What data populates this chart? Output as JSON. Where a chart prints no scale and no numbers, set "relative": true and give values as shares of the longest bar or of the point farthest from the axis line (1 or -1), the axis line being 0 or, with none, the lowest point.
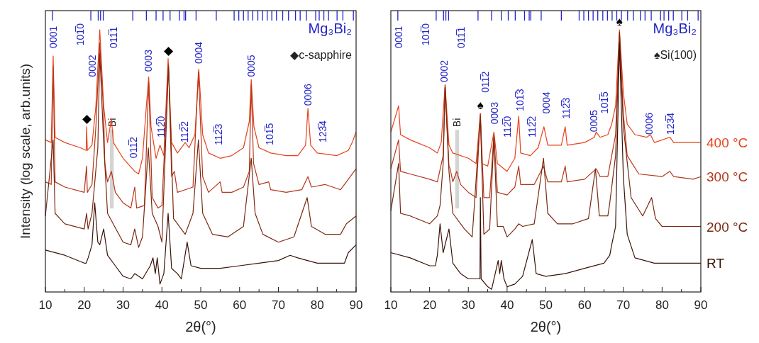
{
  "chart_data": [
    {
      "type": "line",
      "relative": true,
      "xlabel": "2θ(°)",
      "ylabel": "Intensity (log scale, arb.units)",
      "xlim": [
        10,
        90
      ],
      "tick_labels": "x",
      "xticks": [
        10,
        {
          "value": 15,
          "label": null
        },
        20,
        {
          "value": 25,
          "label": null
        },
        30,
        {
          "value": 35,
          "label": null
        },
        40,
        {
          "value": 45,
          "label": null
        },
        50,
        {
          "value": 55,
          "label": null
        },
        60,
        {
          "value": 65,
          "label": null
        },
        70,
        {
          "value": 75,
          "label": null
        },
        80,
        {
          "value": 85,
          "label": null
        },
        90
      ],
      "series": [
        {
          "color": "#e8421a",
          "x": [
            10,
            11.5,
            12,
            12.5,
            15,
            19,
            20.5,
            20.6,
            20.8,
            22,
            23,
            24,
            25,
            26,
            27,
            27.5,
            30,
            33,
            34,
            35,
            36,
            36.6,
            37.2,
            38.5,
            39.5,
            40.5,
            41.6,
            42.5,
            44,
            46,
            47,
            48.5,
            49.5,
            50.5,
            52,
            55,
            58,
            61,
            62.5,
            63,
            63.7,
            65,
            68,
            72,
            75,
            77,
            77.6,
            78.3,
            80,
            85,
            88,
            89,
            90
          ],
          "values": [
            0.58,
            0.57,
            0.9,
            0.59,
            0.57,
            0.55,
            0.54,
            0.63,
            0.54,
            0.56,
            0.71,
            1.0,
            0.71,
            0.57,
            0.66,
            0.57,
            0.51,
            0.46,
            0.45,
            0.51,
            0.71,
            0.82,
            0.63,
            0.51,
            0.56,
            0.52,
            0.89,
            0.57,
            0.53,
            0.57,
            0.55,
            0.6,
            0.85,
            0.6,
            0.53,
            0.51,
            0.52,
            0.55,
            0.65,
            0.81,
            0.63,
            0.55,
            0.53,
            0.52,
            0.52,
            0.56,
            0.7,
            0.56,
            0.53,
            0.52,
            0.54,
            0.57,
            0.61
          ]
        },
        {
          "color": "#b5361a",
          "x": [
            10,
            11.5,
            12,
            12.5,
            15,
            20,
            20.6,
            20.8,
            22,
            23,
            24,
            25,
            25.3,
            26,
            27,
            28,
            30,
            32,
            33,
            33.5,
            35.5,
            36.6,
            37.5,
            39,
            40,
            41.7,
            42.5,
            43.2,
            44,
            46,
            48,
            49.4,
            50.5,
            52,
            55,
            55.5,
            58,
            61,
            62.5,
            63,
            63.6,
            65,
            67.5,
            68,
            72,
            76,
            77.6,
            78.5,
            82,
            86,
            87.5,
            90
          ],
          "values": [
            0.42,
            0.41,
            0.86,
            0.42,
            0.4,
            0.38,
            0.48,
            0.38,
            0.41,
            0.63,
            0.95,
            0.68,
            0.49,
            0.42,
            0.46,
            0.38,
            0.34,
            0.32,
            0.4,
            0.32,
            0.33,
            0.8,
            0.36,
            0.32,
            0.33,
            0.87,
            0.44,
            0.46,
            0.38,
            0.39,
            0.4,
            0.84,
            0.44,
            0.38,
            0.42,
            0.38,
            0.38,
            0.4,
            0.46,
            0.79,
            0.49,
            0.41,
            0.42,
            0.39,
            0.38,
            0.39,
            0.44,
            0.4,
            0.41,
            0.39,
            0.42,
            0.47
          ]
        },
        {
          "color": "#7a2810",
          "x": [
            10,
            12,
            12.5,
            15,
            20,
            20.6,
            21,
            22,
            23.5,
            24,
            25,
            26,
            30,
            32,
            33,
            34,
            35,
            36.5,
            37.5,
            39,
            40,
            41.7,
            43,
            46,
            48,
            49.4,
            50.5,
            53,
            57,
            61,
            63,
            64,
            66,
            70,
            74,
            77.4,
            78.5,
            82,
            86,
            87.5,
            90
          ],
          "values": [
            0.29,
            0.58,
            0.3,
            0.26,
            0.24,
            0.3,
            0.24,
            0.3,
            0.55,
            0.91,
            0.57,
            0.3,
            0.19,
            0.18,
            0.24,
            0.17,
            0.21,
            0.55,
            0.3,
            0.25,
            0.19,
            0.86,
            0.28,
            0.22,
            0.3,
            0.58,
            0.3,
            0.22,
            0.21,
            0.25,
            0.51,
            0.3,
            0.22,
            0.19,
            0.21,
            0.36,
            0.25,
            0.22,
            0.22,
            0.26,
            0.29
          ]
        },
        {
          "color": "#3a1208",
          "x": [
            10,
            15,
            20,
            20.5,
            21,
            22,
            22.7,
            23.5,
            24,
            25,
            26,
            28,
            30,
            32,
            33,
            35,
            37,
            37.7,
            38.3,
            38.8,
            39.5,
            40.5,
            41.6,
            42.5,
            44,
            45,
            46.5,
            47.5,
            50,
            55,
            60,
            65,
            70,
            73,
            75,
            80,
            85,
            87,
            88,
            90
          ],
          "values": [
            0.16,
            0.14,
            0.11,
            0.11,
            0.13,
            0.18,
            0.34,
            0.19,
            0.18,
            0.24,
            0.14,
            0.1,
            0.06,
            0.05,
            0.07,
            0.05,
            0.1,
            0.13,
            0.07,
            0.13,
            0.03,
            0.07,
            0.3,
            0.09,
            0.07,
            0.05,
            0.19,
            0.1,
            0.09,
            0.09,
            0.1,
            0.11,
            0.12,
            0.14,
            0.13,
            0.11,
            0.11,
            0.11,
            0.15,
            0.18
          ]
        }
      ],
      "ref_lines": [
        {
          "axis": "x",
          "value": 11.8,
          "color": "#2424c8"
        },
        {
          "axis": "x",
          "value": 21.7,
          "color": "#2424c8"
        },
        {
          "axis": "x",
          "value": 23.6,
          "color": "#2424c8"
        },
        {
          "axis": "x",
          "value": 24.2,
          "color": "#2424c8"
        },
        {
          "axis": "x",
          "value": 24.9,
          "color": "#2424c8"
        },
        {
          "axis": "x",
          "value": 32.5,
          "color": "#2424c8"
        },
        {
          "axis": "x",
          "value": 36.0,
          "color": "#2424c8"
        },
        {
          "axis": "x",
          "value": 38.5,
          "color": "#2424c8"
        },
        {
          "axis": "x",
          "value": 40.3,
          "color": "#2424c8"
        },
        {
          "axis": "x",
          "value": 42.1,
          "color": "#2424c8"
        },
        {
          "axis": "x",
          "value": 44.5,
          "color": "#2424c8"
        },
        {
          "axis": "x",
          "value": 45.7,
          "color": "#2424c8"
        },
        {
          "axis": "x",
          "value": 46.1,
          "color": "#2424c8"
        },
        {
          "axis": "x",
          "value": 48.8,
          "color": "#2424c8"
        },
        {
          "axis": "x",
          "value": 54.0,
          "color": "#2424c8"
        },
        {
          "axis": "x",
          "value": 58.6,
          "color": "#2424c8"
        },
        {
          "axis": "x",
          "value": 59.8,
          "color": "#2424c8"
        },
        {
          "axis": "x",
          "value": 61.0,
          "color": "#2424c8"
        },
        {
          "axis": "x",
          "value": 62.2,
          "color": "#2424c8"
        },
        {
          "axis": "x",
          "value": 63.4,
          "color": "#2424c8"
        },
        {
          "axis": "x",
          "value": 64.7,
          "color": "#2424c8"
        },
        {
          "axis": "x",
          "value": 65.9,
          "color": "#2424c8"
        },
        {
          "axis": "x",
          "value": 67.1,
          "color": "#2424c8"
        },
        {
          "axis": "x",
          "value": 68.3,
          "color": "#2424c8"
        },
        {
          "axis": "x",
          "value": 69.5,
          "color": "#2424c8"
        },
        {
          "axis": "x",
          "value": 71.1,
          "color": "#2424c8"
        },
        {
          "axis": "x",
          "value": 72.6,
          "color": "#2424c8"
        },
        {
          "axis": "x",
          "value": 74.4,
          "color": "#2424c8"
        },
        {
          "axis": "x",
          "value": 75.6,
          "color": "#2424c8"
        },
        {
          "axis": "x",
          "value": 77.2,
          "color": "#2424c8"
        },
        {
          "axis": "x",
          "value": 79.6,
          "color": "#2424c8"
        },
        {
          "axis": "x",
          "value": 80.5,
          "color": "#2424c8"
        },
        {
          "axis": "x",
          "value": 81.7,
          "color": "#2424c8"
        },
        {
          "axis": "x",
          "value": 82.9,
          "color": "#2424c8"
        },
        {
          "axis": "x",
          "value": 85.1,
          "color": "#2424c8"
        },
        {
          "axis": "x",
          "value": 86.6,
          "color": "#2424c8"
        },
        {
          "axis": "x",
          "value": 89.3,
          "color": "#2424c8"
        }
      ],
      "bands": [
        {
          "axis": "x",
          "from": 26.6,
          "to": 27.6,
          "label": "Bi",
          "color": "#d4d4d4"
        }
      ],
      "annotations": [
        "Mg₃Bi₂",
        "◆c-sapphire",
        "0001",
        "101̅0",
        "0002",
        "011̅1",
        "0003",
        "0004",
        "0005",
        "0006",
        "011̅2",
        "112̅0",
        "112̅2",
        "112̅3",
        "101̅5",
        "123̅4",
        {
          "text": "◆",
          "x": 20.6,
          "y": 0.63
        },
        {
          "text": "◆",
          "x": 41.6,
          "y": 0.89
        }
      ]
    },
    {
      "type": "line",
      "relative": true,
      "xlabel": "2θ(°)",
      "xlim": [
        10,
        90
      ],
      "tick_labels": "x",
      "xticks": [
        10,
        {
          "value": 15,
          "label": null
        },
        20,
        {
          "value": 25,
          "label": null
        },
        30,
        {
          "value": 35,
          "label": null
        },
        40,
        {
          "value": 45,
          "label": null
        },
        50,
        {
          "value": 55,
          "label": null
        },
        60,
        {
          "value": 65,
          "label": null
        },
        70,
        {
          "value": 75,
          "label": null
        },
        80,
        {
          "value": 85,
          "label": null
        },
        90
      ],
      "series": [
        {
          "name": "400 °C",
          "color": "#e8421a",
          "x": [
            10,
            12,
            12.5,
            15,
            20,
            22,
            23,
            24,
            25,
            26,
            30,
            32,
            33.1,
            33.5,
            35,
            36.6,
            37.5,
            40,
            42,
            43,
            43.5,
            46,
            48,
            49.5,
            50.5,
            54,
            55,
            55.5,
            60,
            62.5,
            63,
            64,
            66,
            67,
            68,
            69,
            70,
            71,
            73,
            76,
            77,
            78,
            82,
            83,
            88,
            90
          ],
          "values": [
            0.61,
            0.71,
            0.6,
            0.58,
            0.55,
            0.53,
            0.57,
            0.79,
            0.56,
            0.53,
            0.51,
            0.49,
            0.68,
            0.49,
            0.48,
            0.61,
            0.49,
            0.46,
            0.51,
            0.67,
            0.53,
            0.52,
            0.55,
            0.63,
            0.56,
            0.56,
            0.63,
            0.56,
            0.57,
            0.59,
            0.61,
            0.59,
            0.6,
            0.64,
            0.71,
            1.0,
            0.76,
            0.64,
            0.6,
            0.59,
            0.6,
            0.57,
            0.59,
            0.57,
            0.57,
            0.57
          ]
        },
        {
          "name": "300 °C",
          "color": "#b5361a",
          "x": [
            10,
            12,
            12.5,
            15,
            20,
            22,
            23.5,
            24,
            25,
            25.3,
            26,
            27,
            28,
            30,
            32,
            33.1,
            34,
            35.5,
            36.6,
            37.5,
            40,
            42,
            43,
            43.5,
            47,
            49.4,
            50.5,
            54,
            55,
            55.5,
            60,
            63,
            64,
            66,
            67,
            68,
            69,
            70,
            71,
            74,
            80,
            82,
            83,
            88,
            90
          ],
          "values": [
            0.47,
            0.58,
            0.46,
            0.45,
            0.43,
            0.42,
            0.52,
            0.79,
            0.48,
            0.47,
            0.42,
            0.46,
            0.41,
            0.38,
            0.36,
            0.68,
            0.36,
            0.36,
            0.6,
            0.38,
            0.37,
            0.4,
            0.48,
            0.41,
            0.41,
            0.48,
            0.42,
            0.42,
            0.48,
            0.42,
            0.43,
            0.47,
            0.44,
            0.44,
            0.52,
            0.6,
            0.98,
            0.68,
            0.52,
            0.45,
            0.44,
            0.46,
            0.44,
            0.43,
            0.44
          ]
        },
        {
          "name": "200 °C",
          "color": "#7a2810",
          "x": [
            10,
            12,
            12.5,
            15,
            20,
            22,
            22.7,
            23.5,
            24,
            25,
            26,
            29,
            31,
            33.1,
            34,
            35.5,
            36.6,
            37.5,
            39,
            40,
            42,
            43,
            44,
            47,
            49.4,
            50.5,
            53,
            57,
            61,
            62.8,
            63.8,
            66,
            66.5,
            68,
            69,
            70,
            72,
            75,
            77.3,
            78.3,
            80,
            85,
            90
          ],
          "values": [
            0.31,
            0.49,
            0.3,
            0.29,
            0.26,
            0.29,
            0.33,
            0.49,
            0.78,
            0.46,
            0.3,
            0.24,
            0.21,
            0.67,
            0.22,
            0.24,
            0.59,
            0.25,
            0.25,
            0.21,
            0.24,
            0.26,
            0.25,
            0.26,
            0.51,
            0.3,
            0.26,
            0.26,
            0.28,
            0.47,
            0.29,
            0.29,
            0.34,
            0.52,
            0.99,
            0.63,
            0.36,
            0.29,
            0.36,
            0.28,
            0.25,
            0.25,
            0.25
          ]
        },
        {
          "name": "RT",
          "color": "#3a1208",
          "x": [
            10,
            15,
            20,
            21.5,
            22,
            22.7,
            23.5,
            25,
            26,
            28,
            30,
            33,
            33.1,
            33.3,
            35,
            36,
            37.7,
            38.1,
            38.5,
            39.2,
            40,
            42,
            44,
            46.5,
            47.5,
            50,
            55,
            60,
            65,
            66.5,
            67,
            68,
            69,
            70,
            71,
            73,
            78,
            85,
            90
          ],
          "values": [
            0.15,
            0.13,
            0.1,
            0.1,
            0.14,
            0.26,
            0.15,
            0.24,
            0.11,
            0.07,
            0.05,
            0.05,
            0.36,
            0.05,
            0.02,
            0.01,
            0.12,
            0.07,
            0.12,
            0.05,
            0.02,
            0.03,
            0.06,
            0.2,
            0.07,
            0.06,
            0.07,
            0.09,
            0.11,
            0.14,
            0.18,
            0.25,
            0.95,
            0.44,
            0.22,
            0.13,
            0.11,
            0.11,
            0.11
          ]
        }
      ],
      "ref_lines": [
        {
          "axis": "x",
          "value": 11.8,
          "color": "#2424c8"
        },
        {
          "axis": "x",
          "value": 21.7,
          "color": "#2424c8"
        },
        {
          "axis": "x",
          "value": 23.6,
          "color": "#2424c8"
        },
        {
          "axis": "x",
          "value": 24.2,
          "color": "#2424c8"
        },
        {
          "axis": "x",
          "value": 24.9,
          "color": "#2424c8"
        },
        {
          "axis": "x",
          "value": 32.5,
          "color": "#2424c8"
        },
        {
          "axis": "x",
          "value": 36.0,
          "color": "#2424c8"
        },
        {
          "axis": "x",
          "value": 38.5,
          "color": "#2424c8"
        },
        {
          "axis": "x",
          "value": 40.3,
          "color": "#2424c8"
        },
        {
          "axis": "x",
          "value": 42.1,
          "color": "#2424c8"
        },
        {
          "axis": "x",
          "value": 44.5,
          "color": "#2424c8"
        },
        {
          "axis": "x",
          "value": 45.7,
          "color": "#2424c8"
        },
        {
          "axis": "x",
          "value": 46.1,
          "color": "#2424c8"
        },
        {
          "axis": "x",
          "value": 48.8,
          "color": "#2424c8"
        },
        {
          "axis": "x",
          "value": 54.0,
          "color": "#2424c8"
        },
        {
          "axis": "x",
          "value": 58.6,
          "color": "#2424c8"
        },
        {
          "axis": "x",
          "value": 59.8,
          "color": "#2424c8"
        },
        {
          "axis": "x",
          "value": 61.0,
          "color": "#2424c8"
        },
        {
          "axis": "x",
          "value": 62.2,
          "color": "#2424c8"
        },
        {
          "axis": "x",
          "value": 63.4,
          "color": "#2424c8"
        },
        {
          "axis": "x",
          "value": 64.7,
          "color": "#2424c8"
        },
        {
          "axis": "x",
          "value": 65.9,
          "color": "#2424c8"
        },
        {
          "axis": "x",
          "value": 67.1,
          "color": "#2424c8"
        },
        {
          "axis": "x",
          "value": 68.3,
          "color": "#2424c8"
        },
        {
          "axis": "x",
          "value": 69.5,
          "color": "#2424c8"
        },
        {
          "axis": "x",
          "value": 71.1,
          "color": "#2424c8"
        },
        {
          "axis": "x",
          "value": 72.6,
          "color": "#2424c8"
        },
        {
          "axis": "x",
          "value": 74.4,
          "color": "#2424c8"
        },
        {
          "axis": "x",
          "value": 75.6,
          "color": "#2424c8"
        },
        {
          "axis": "x",
          "value": 77.2,
          "color": "#2424c8"
        },
        {
          "axis": "x",
          "value": 79.6,
          "color": "#2424c8"
        },
        {
          "axis": "x",
          "value": 80.5,
          "color": "#2424c8"
        },
        {
          "axis": "x",
          "value": 81.7,
          "color": "#2424c8"
        },
        {
          "axis": "x",
          "value": 82.9,
          "color": "#2424c8"
        },
        {
          "axis": "x",
          "value": 85.1,
          "color": "#2424c8"
        },
        {
          "axis": "x",
          "value": 86.6,
          "color": "#2424c8"
        },
        {
          "axis": "x",
          "value": 89.3,
          "color": "#2424c8"
        }
      ],
      "bands": [
        {
          "axis": "x",
          "from": 26.6,
          "to": 27.6,
          "label": "Bi",
          "color": "#d4d4d4"
        }
      ],
      "annotations": [
        "Mg₃Bi₂",
        "♠Si(100)",
        "0001",
        "101̅0",
        "0002",
        "011̅1",
        "011̅2",
        "0003",
        "112̅0",
        "101̅3",
        "112̅2",
        "0004",
        "112̅3",
        "0005",
        "101̅5",
        "0006",
        "123̅4",
        {
          "text": "♠",
          "x": 33.1,
          "y": 0.68
        },
        {
          "text": "♠",
          "x": 69,
          "y": 1.0
        }
      ]
    }
  ]
}
